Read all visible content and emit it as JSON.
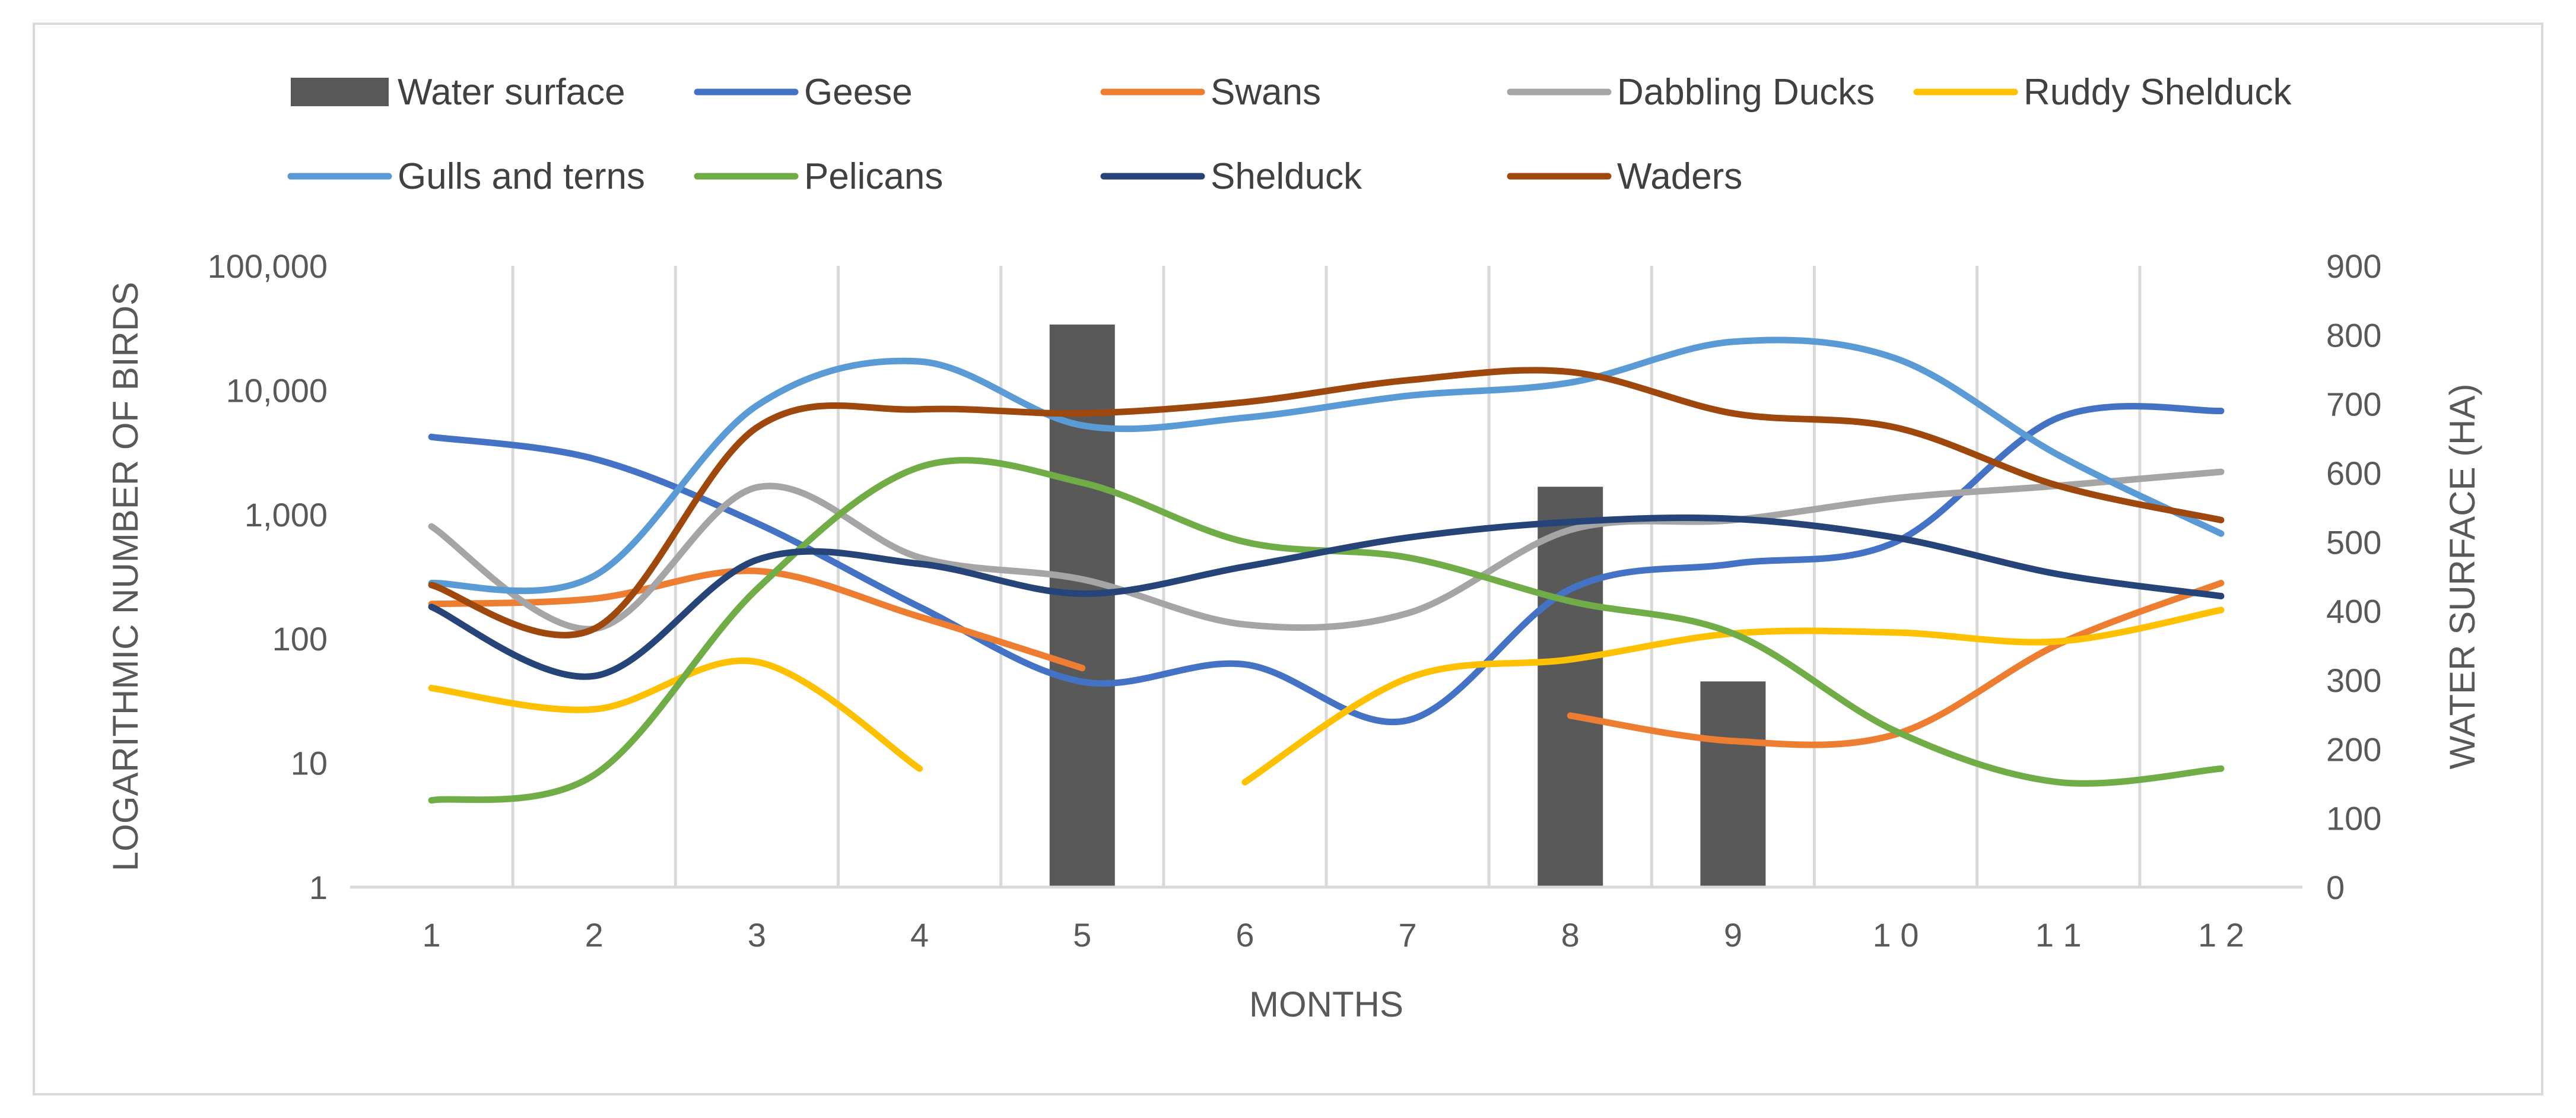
{
  "chart_data": {
    "type": "line",
    "xlabel": "MONTHS",
    "ylabel_left": "LOGARITHMIC NUMBER OF BIRDS",
    "ylabel_right": "WATER SURFACE (HA)",
    "categories": [
      "1",
      "2",
      "3",
      "4",
      "5",
      "6",
      "7",
      "8",
      "9",
      "1 0",
      "1 1",
      "1 2"
    ],
    "y_left": {
      "scale": "log",
      "range": [
        1,
        100000
      ],
      "ticks": [
        "1",
        "10",
        "100",
        "1,000",
        "10,000",
        "100,000"
      ]
    },
    "y_right": {
      "scale": "linear",
      "range": [
        0,
        900
      ],
      "ticks": [
        "0",
        "100",
        "200",
        "300",
        "400",
        "500",
        "600",
        "700",
        "800",
        "900"
      ]
    },
    "bar_series": {
      "name": "Water surface",
      "color": "#595959",
      "values": [
        null,
        null,
        null,
        null,
        815,
        null,
        null,
        580,
        298,
        null,
        null,
        null
      ]
    },
    "series": [
      {
        "name": "Geese",
        "color": "#4472c4",
        "values": [
          4200,
          2800,
          850,
          180,
          45,
          62,
          22,
          250,
          400,
          600,
          6000,
          6800
        ]
      },
      {
        "name": "Swans",
        "color": "#ed7d31",
        "values": [
          190,
          210,
          350,
          150,
          58,
          null,
          null,
          24,
          15,
          17,
          90,
          280
        ]
      },
      {
        "name": "Dabbling Ducks",
        "color": "#a5a5a5",
        "values": [
          800,
          120,
          1650,
          450,
          300,
          130,
          160,
          750,
          900,
          1350,
          1700,
          2200
        ]
      },
      {
        "name": "Ruddy Shelduck",
        "color": "#ffc000",
        "values": [
          40,
          27,
          65,
          9,
          null,
          7,
          48,
          68,
          110,
          112,
          95,
          170
        ]
      },
      {
        "name": "Gulls and terns",
        "color": "#5b9bd5",
        "values": [
          280,
          320,
          7500,
          17000,
          5200,
          6000,
          9000,
          11500,
          24500,
          18000,
          3000,
          700
        ]
      },
      {
        "name": "Pelicans",
        "color": "#70ad47",
        "values": [
          5,
          8,
          250,
          2400,
          1800,
          600,
          450,
          200,
          110,
          18,
          7,
          9
        ]
      },
      {
        "name": "Shelduck",
        "color": "#264478",
        "values": [
          180,
          50,
          430,
          400,
          230,
          380,
          650,
          870,
          920,
          650,
          330,
          220
        ]
      },
      {
        "name": "Waders",
        "color": "#9e480e",
        "values": [
          270,
          120,
          5000,
          7000,
          6500,
          8000,
          12000,
          14000,
          6500,
          5000,
          1700,
          900
        ]
      }
    ],
    "legend": [
      "Water surface",
      "Geese",
      "Swans",
      "Dabbling Ducks",
      "Ruddy Shelduck",
      "Gulls and terns",
      "Pelicans",
      "Shelduck",
      "Waders"
    ],
    "legend_position": "top"
  }
}
